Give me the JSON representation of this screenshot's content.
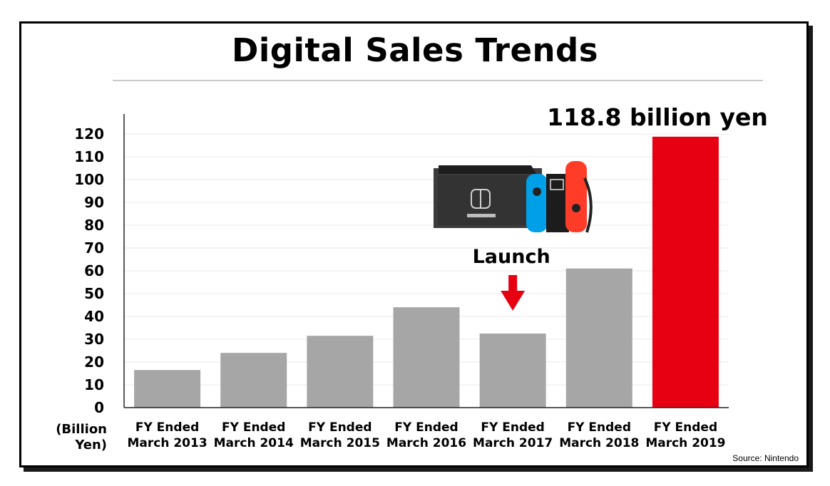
{
  "chart_data": {
    "type": "bar",
    "title": "Digital Sales Trends",
    "ylabel_lines": [
      "(Billion",
      "Yen)"
    ],
    "ylim": [
      0,
      120
    ],
    "yticks": [
      0,
      10,
      20,
      30,
      40,
      50,
      60,
      70,
      80,
      90,
      100,
      110,
      120
    ],
    "categories": [
      [
        "FY Ended",
        "March 2013"
      ],
      [
        "FY Ended",
        "March 2014"
      ],
      [
        "FY Ended",
        "March 2015"
      ],
      [
        "FY Ended",
        "March 2016"
      ],
      [
        "FY Ended",
        "March 2017"
      ],
      [
        "FY Ended",
        "March 2018"
      ],
      [
        "FY Ended",
        "March 2019"
      ]
    ],
    "values": [
      16.5,
      24,
      31.5,
      44,
      32.5,
      61,
      118.8
    ],
    "colors": [
      "#a6a6a6",
      "#a6a6a6",
      "#a6a6a6",
      "#a6a6a6",
      "#a6a6a6",
      "#a6a6a6",
      "#e60012"
    ],
    "grid": true,
    "annotations": {
      "highlight": "118.8 billion yen",
      "launch": "Launch"
    },
    "source": "Source: Nintendo"
  },
  "colors": {
    "bar": "#a6a6a6",
    "highlight_bar": "#e60012",
    "arrow": "#e60012"
  }
}
